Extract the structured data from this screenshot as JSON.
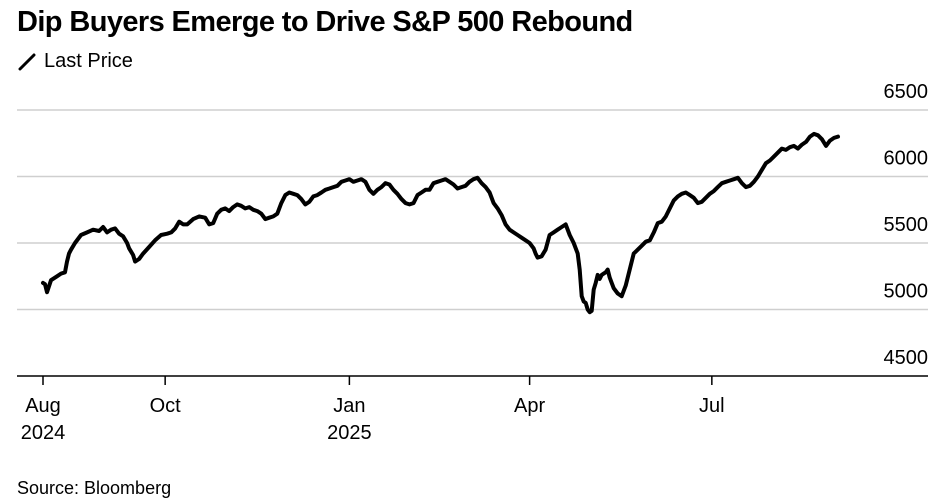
{
  "title": "Dip Buyers Emerge to Drive S&P 500 Rebound",
  "legend": {
    "label": "Last Price",
    "icon": "line-swatch-icon"
  },
  "source": "Source: Bloomberg",
  "chart_data": {
    "type": "line",
    "title": "Dip Buyers Emerge to Drive S&P 500 Rebound",
    "xlabel": "",
    "ylabel": "",
    "ylim": [
      4500,
      6500
    ],
    "yticks": [
      "6500",
      "6000",
      "5500",
      "5000",
      "4500"
    ],
    "ytick_values": [
      6500,
      6000,
      5500,
      5000,
      4500
    ],
    "xticks": [
      {
        "line1": "Aug",
        "line2": "2024",
        "day": 0
      },
      {
        "line1": "Oct",
        "line2": "",
        "day": 61
      },
      {
        "line1": "Jan",
        "line2": "2025",
        "day": 153
      },
      {
        "line1": "Apr",
        "line2": "",
        "day": 243
      },
      {
        "line1": "Jul",
        "line2": "",
        "day": 334
      }
    ],
    "x_range_days": [
      -12,
      388
    ],
    "line_color": "#000000",
    "series": [
      {
        "name": "Last Price",
        "points": [
          [
            0,
            5200
          ],
          [
            1,
            5190
          ],
          [
            2,
            5130
          ],
          [
            4,
            5220
          ],
          [
            7,
            5250
          ],
          [
            9,
            5270
          ],
          [
            11,
            5280
          ],
          [
            12,
            5360
          ],
          [
            13,
            5420
          ],
          [
            14,
            5450
          ],
          [
            16,
            5500
          ],
          [
            19,
            5560
          ],
          [
            22,
            5580
          ],
          [
            25,
            5600
          ],
          [
            28,
            5590
          ],
          [
            30,
            5620
          ],
          [
            32,
            5580
          ],
          [
            34,
            5600
          ],
          [
            36,
            5610
          ],
          [
            38,
            5570
          ],
          [
            40,
            5550
          ],
          [
            42,
            5500
          ],
          [
            43,
            5460
          ],
          [
            45,
            5410
          ],
          [
            46,
            5360
          ],
          [
            48,
            5380
          ],
          [
            50,
            5420
          ],
          [
            53,
            5470
          ],
          [
            56,
            5520
          ],
          [
            59,
            5560
          ],
          [
            62,
            5570
          ],
          [
            64,
            5580
          ],
          [
            66,
            5610
          ],
          [
            68,
            5660
          ],
          [
            70,
            5640
          ],
          [
            72,
            5640
          ],
          [
            75,
            5680
          ],
          [
            78,
            5700
          ],
          [
            81,
            5690
          ],
          [
            83,
            5640
          ],
          [
            85,
            5650
          ],
          [
            87,
            5720
          ],
          [
            89,
            5750
          ],
          [
            91,
            5760
          ],
          [
            93,
            5740
          ],
          [
            95,
            5770
          ],
          [
            97,
            5790
          ],
          [
            99,
            5780
          ],
          [
            101,
            5760
          ],
          [
            103,
            5770
          ],
          [
            105,
            5750
          ],
          [
            107,
            5740
          ],
          [
            109,
            5720
          ],
          [
            111,
            5680
          ],
          [
            113,
            5690
          ],
          [
            115,
            5700
          ],
          [
            117,
            5720
          ],
          [
            119,
            5800
          ],
          [
            121,
            5860
          ],
          [
            123,
            5880
          ],
          [
            125,
            5870
          ],
          [
            127,
            5860
          ],
          [
            129,
            5830
          ],
          [
            131,
            5790
          ],
          [
            133,
            5810
          ],
          [
            135,
            5850
          ],
          [
            137,
            5860
          ],
          [
            139,
            5880
          ],
          [
            141,
            5900
          ],
          [
            143,
            5910
          ],
          [
            145,
            5920
          ],
          [
            147,
            5930
          ],
          [
            149,
            5960
          ],
          [
            151,
            5970
          ],
          [
            153,
            5980
          ],
          [
            155,
            5960
          ],
          [
            157,
            5970
          ],
          [
            159,
            5980
          ],
          [
            161,
            5960
          ],
          [
            163,
            5900
          ],
          [
            165,
            5870
          ],
          [
            167,
            5900
          ],
          [
            169,
            5920
          ],
          [
            171,
            5950
          ],
          [
            173,
            5940
          ],
          [
            175,
            5900
          ],
          [
            177,
            5870
          ],
          [
            179,
            5830
          ],
          [
            181,
            5800
          ],
          [
            183,
            5790
          ],
          [
            185,
            5800
          ],
          [
            187,
            5860
          ],
          [
            189,
            5880
          ],
          [
            191,
            5900
          ],
          [
            193,
            5900
          ],
          [
            195,
            5950
          ],
          [
            197,
            5960
          ],
          [
            199,
            5970
          ],
          [
            201,
            5980
          ],
          [
            203,
            5960
          ],
          [
            205,
            5940
          ],
          [
            207,
            5910
          ],
          [
            209,
            5920
          ],
          [
            211,
            5930
          ],
          [
            213,
            5960
          ],
          [
            215,
            5980
          ],
          [
            217,
            5990
          ],
          [
            219,
            5950
          ],
          [
            221,
            5920
          ],
          [
            223,
            5880
          ],
          [
            225,
            5800
          ],
          [
            227,
            5760
          ],
          [
            229,
            5710
          ],
          [
            231,
            5640
          ],
          [
            233,
            5600
          ],
          [
            235,
            5580
          ],
          [
            237,
            5560
          ],
          [
            239,
            5540
          ],
          [
            241,
            5520
          ],
          [
            243,
            5500
          ],
          [
            245,
            5460
          ],
          [
            246,
            5420
          ],
          [
            247,
            5390
          ],
          [
            249,
            5400
          ],
          [
            251,
            5450
          ],
          [
            253,
            5560
          ],
          [
            255,
            5580
          ],
          [
            257,
            5600
          ],
          [
            259,
            5620
          ],
          [
            261,
            5640
          ],
          [
            263,
            5560
          ],
          [
            265,
            5500
          ],
          [
            267,
            5420
          ],
          [
            268,
            5300
          ],
          [
            269,
            5100
          ],
          [
            270,
            5060
          ],
          [
            271,
            5050
          ],
          [
            272,
            5000
          ],
          [
            273,
            4980
          ],
          [
            274,
            4990
          ],
          [
            275,
            5150
          ],
          [
            276,
            5200
          ],
          [
            277,
            5260
          ],
          [
            278,
            5230
          ],
          [
            279,
            5260
          ],
          [
            280,
            5270
          ],
          [
            281,
            5280
          ],
          [
            282,
            5300
          ],
          [
            283,
            5240
          ],
          [
            284,
            5200
          ],
          [
            285,
            5160
          ],
          [
            287,
            5120
          ],
          [
            289,
            5100
          ],
          [
            291,
            5180
          ],
          [
            293,
            5300
          ],
          [
            295,
            5420
          ],
          [
            297,
            5450
          ],
          [
            299,
            5480
          ],
          [
            301,
            5510
          ],
          [
            303,
            5520
          ],
          [
            305,
            5580
          ],
          [
            307,
            5650
          ],
          [
            309,
            5660
          ],
          [
            311,
            5700
          ],
          [
            313,
            5760
          ],
          [
            315,
            5820
          ],
          [
            317,
            5850
          ],
          [
            319,
            5870
          ],
          [
            321,
            5880
          ],
          [
            323,
            5860
          ],
          [
            325,
            5840
          ],
          [
            327,
            5800
          ],
          [
            329,
            5810
          ],
          [
            331,
            5840
          ],
          [
            333,
            5870
          ],
          [
            335,
            5890
          ],
          [
            337,
            5920
          ],
          [
            339,
            5950
          ],
          [
            341,
            5960
          ],
          [
            343,
            5970
          ],
          [
            345,
            5980
          ],
          [
            347,
            5990
          ],
          [
            349,
            5950
          ],
          [
            351,
            5920
          ],
          [
            353,
            5930
          ],
          [
            355,
            5960
          ],
          [
            357,
            6000
          ],
          [
            359,
            6050
          ],
          [
            361,
            6100
          ],
          [
            363,
            6120
          ],
          [
            365,
            6150
          ],
          [
            367,
            6180
          ],
          [
            369,
            6210
          ],
          [
            371,
            6200
          ],
          [
            373,
            6220
          ],
          [
            375,
            6230
          ],
          [
            377,
            6210
          ],
          [
            379,
            6240
          ],
          [
            381,
            6260
          ],
          [
            383,
            6300
          ],
          [
            385,
            6320
          ],
          [
            387,
            6310
          ],
          [
            389,
            6280
          ],
          [
            391,
            6230
          ],
          [
            393,
            6270
          ],
          [
            395,
            6290
          ],
          [
            397,
            6300
          ]
        ]
      }
    ]
  }
}
